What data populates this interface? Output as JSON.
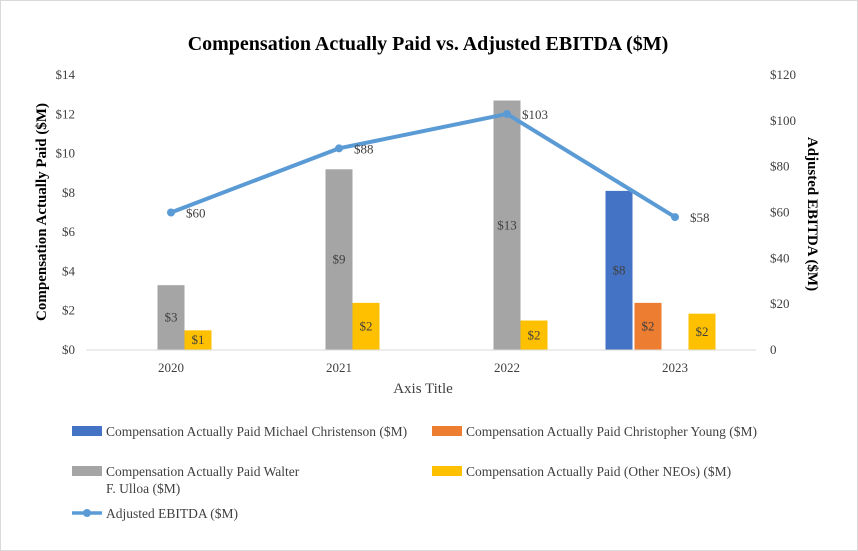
{
  "chart_data": {
    "type": "bar",
    "title": "Compensation Actually Paid vs. Adjusted EBITDA ($M)",
    "xlabel": "Axis Title",
    "ylabel": "Compensation Actually Paid ($M)",
    "y2label": "Adjusted EBITDA ($M)",
    "categories": [
      "2020",
      "2021",
      "2022",
      "2023"
    ],
    "ylim": [
      0,
      14
    ],
    "yticks": [
      "$0",
      "$2",
      "$4",
      "$6",
      "$8",
      "$10",
      "$12",
      "$14"
    ],
    "y2lim": [
      0,
      120
    ],
    "y2ticks": [
      "0",
      "$20",
      "$40",
      "$60",
      "$80",
      "$100",
      "$120"
    ],
    "grid": false,
    "legend_position": "bottom",
    "series": [
      {
        "name": "Compensation Actually Paid Michael Christenson ($M)",
        "legend_lines": [
          "Compensation Actually Paid Michael Christenson ($M)"
        ],
        "kind": "bar",
        "axis": "left",
        "color": "#4472C4",
        "values": [
          null,
          null,
          null,
          8.1
        ],
        "labels": [
          null,
          null,
          null,
          "$8"
        ]
      },
      {
        "name": "Compensation Actually Paid Christopher Young ($M)",
        "legend_lines": [
          "Compensation Actually Paid Christopher Young ($M)"
        ],
        "kind": "bar",
        "axis": "left",
        "color": "#ED7D31",
        "values": [
          null,
          null,
          null,
          2.4
        ],
        "labels": [
          null,
          null,
          null,
          "$2"
        ]
      },
      {
        "name": "Compensation Actually Paid Walter F. Ulloa ($M)",
        "legend_lines": [
          "Compensation Actually Paid Walter",
          "F. Ulloa ($M)"
        ],
        "kind": "bar",
        "axis": "left",
        "color": "#A5A5A5",
        "values": [
          3.3,
          9.2,
          12.7,
          null
        ],
        "labels": [
          "$3",
          "$9",
          "$13",
          null
        ]
      },
      {
        "name": "Compensation Actually Paid (Other NEOs) ($M)",
        "legend_lines": [
          "Compensation Actually Paid (Other NEOs) ($M)"
        ],
        "kind": "bar",
        "axis": "left",
        "color": "#FFC000",
        "values": [
          1.0,
          2.4,
          1.5,
          1.85
        ],
        "labels": [
          "$1",
          "$2",
          "$2",
          "$2"
        ]
      },
      {
        "name": "Adjusted EBITDA ($M)",
        "legend_lines": [
          "Adjusted EBITDA ($M)"
        ],
        "kind": "line",
        "axis": "right",
        "color": "#5B9BD5",
        "values": [
          60,
          88,
          103,
          58
        ],
        "labels": [
          "$60",
          "$88",
          "$103",
          "$58"
        ]
      }
    ]
  }
}
